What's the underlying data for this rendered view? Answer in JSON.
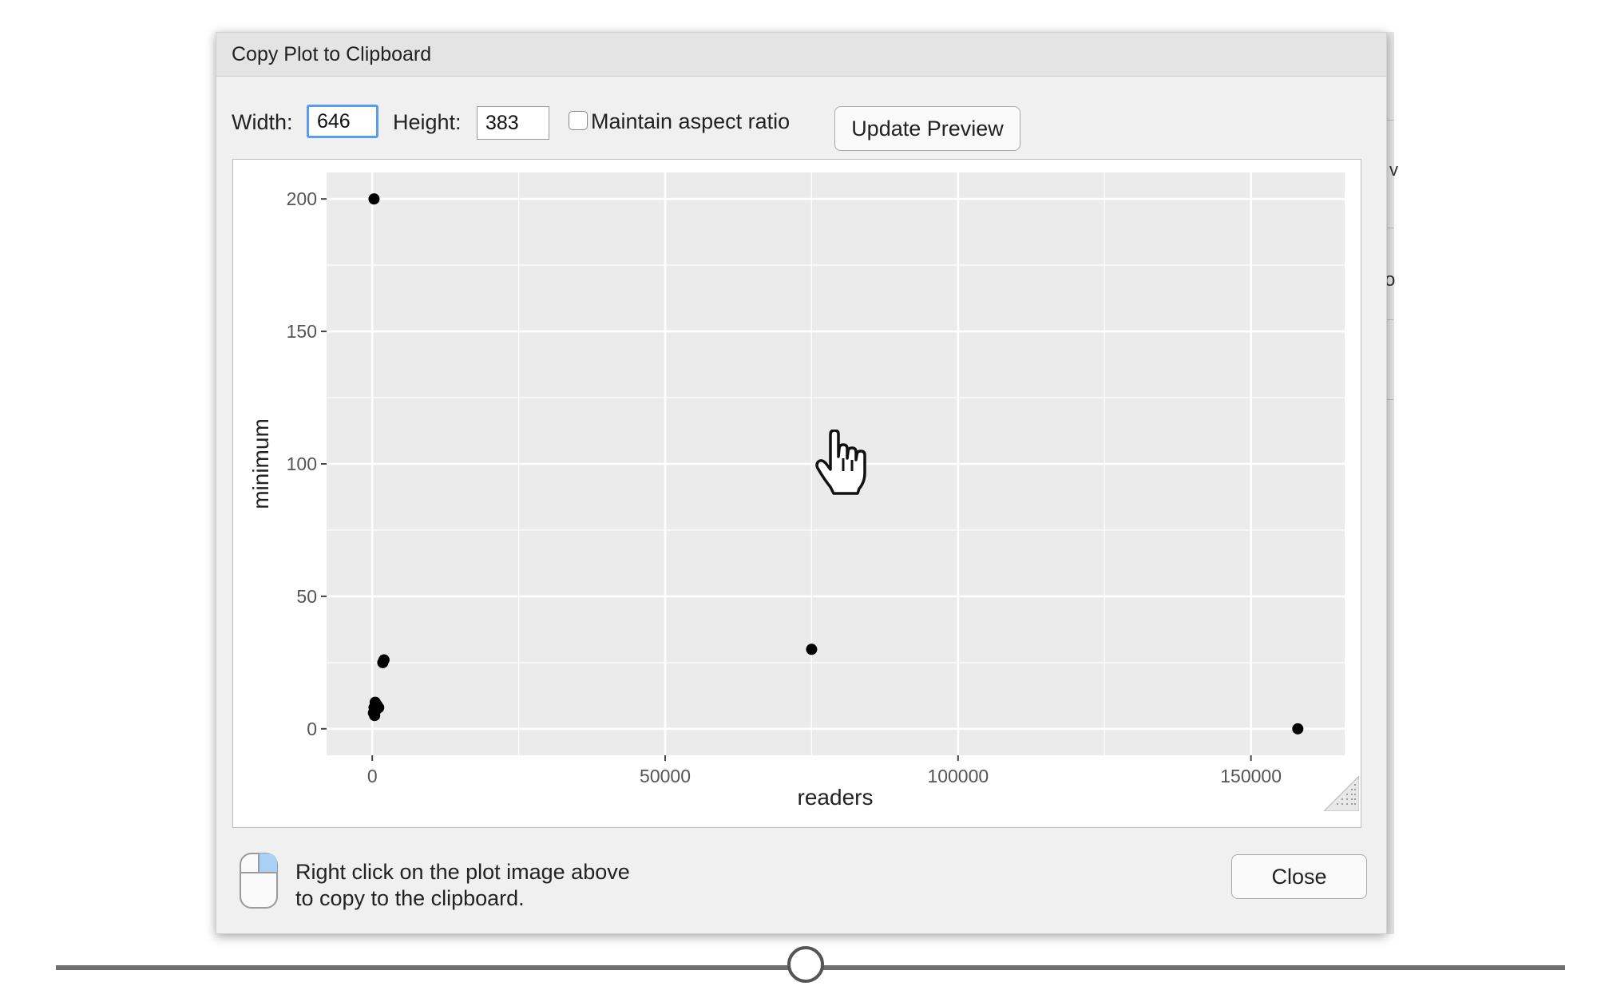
{
  "dialog": {
    "title": "Copy Plot to Clipboard",
    "width_label": "Width:",
    "width_value": "646",
    "height_label": "Height:",
    "height_value": "383",
    "maintain_aspect_label": "Maintain aspect ratio",
    "maintain_aspect_checked": false,
    "update_button": "Update Preview",
    "close_button": "Close",
    "hint_line1": "Right click on the plot image above",
    "hint_line2": "to copy to the clipboard."
  },
  "background_app": {
    "fragment1": "v",
    "fragment2": "o"
  },
  "colors": {
    "panel_bg": "#ebebeb",
    "grid": "#ffffff",
    "points": "#000000",
    "focus_ring": "#5a9cf0"
  },
  "icons": [
    "mouse-icon",
    "hand-pointer-icon",
    "resize-grip-icon",
    "checkbox-icon"
  ],
  "chart_data": {
    "type": "scatter",
    "title": "",
    "xlabel": "readers",
    "ylabel": "minimum",
    "xlim": [
      -7800,
      166000
    ],
    "ylim": [
      -10,
      210
    ],
    "x_ticks": [
      0,
      50000,
      100000,
      150000
    ],
    "x_tick_labels": [
      "0",
      "50000",
      "100000",
      "150000"
    ],
    "y_ticks": [
      0,
      50,
      100,
      150,
      200
    ],
    "y_tick_labels": [
      "0",
      "50",
      "100",
      "150",
      "200"
    ],
    "grid": true,
    "points": [
      {
        "x": 300,
        "y": 200
      },
      {
        "x": 1800,
        "y": 25
      },
      {
        "x": 2000,
        "y": 26
      },
      {
        "x": 500,
        "y": 10
      },
      {
        "x": 800,
        "y": 9
      },
      {
        "x": 300,
        "y": 8
      },
      {
        "x": 1100,
        "y": 8
      },
      {
        "x": 600,
        "y": 7
      },
      {
        "x": 200,
        "y": 6
      },
      {
        "x": 400,
        "y": 5
      },
      {
        "x": 75000,
        "y": 30
      },
      {
        "x": 158000,
        "y": 0
      }
    ]
  }
}
